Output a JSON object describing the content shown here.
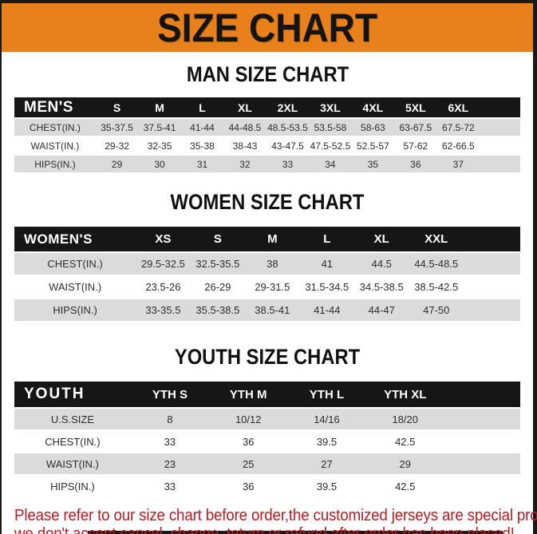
{
  "banner": {
    "title": "SIZE CHART"
  },
  "sections": [
    {
      "title": "MAN SIZE CHART",
      "header": [
        "MEN'S",
        "S",
        "M",
        "L",
        "XL",
        "2XL",
        "3XL",
        "4XL",
        "5XL",
        "6XL"
      ],
      "rows": [
        {
          "label": "CHEST(IN.)",
          "values": [
            "35-37.5",
            "37.5-41",
            "41-44",
            "44-48.5",
            "48.5-53.5",
            "53.5-58",
            "58-63",
            "63-67.5",
            "67.5-72"
          ]
        },
        {
          "label": "WAIST(IN.)",
          "values": [
            "29-32",
            "32-35",
            "35-38",
            "38-43",
            "43-47.5",
            "47.5-52.5",
            "52.5-57",
            "57-62",
            "62-66.5"
          ]
        },
        {
          "label": "HIPS(IN.)",
          "values": [
            "29",
            "30",
            "31",
            "32",
            "33",
            "34",
            "35",
            "36",
            "37"
          ]
        }
      ]
    },
    {
      "title": "WOMEN SIZE CHART",
      "header": [
        "WOMEN'S",
        "XS",
        "S",
        "M",
        "L",
        "XL",
        "XXL"
      ],
      "rows": [
        {
          "label": "CHEST(IN.)",
          "values": [
            "29.5-32.5",
            "32.5-35.5",
            "38",
            "41",
            "44.5",
            "44.5-48.5"
          ]
        },
        {
          "label": "WAIST(IN.)",
          "values": [
            "23.5-26",
            "26-29",
            "29-31.5",
            "31.5-34.5",
            "34.5-38.5",
            "38.5-42.5"
          ]
        },
        {
          "label": "HIPS(IN.)",
          "values": [
            "33-35.5",
            "35.5-38.5",
            "38.5-41",
            "41-44",
            "44-47",
            "47-50"
          ]
        }
      ]
    },
    {
      "title": "YOUTH SIZE CHART",
      "header": [
        "YOUTH",
        "YTH S",
        "YTH M",
        "YTH L",
        "YTH XL"
      ],
      "rows": [
        {
          "label": "U.S.SIZE",
          "values": [
            "8",
            "10/12",
            "14/16",
            "18/20"
          ]
        },
        {
          "label": "CHEST(IN.)",
          "values": [
            "33",
            "36",
            "39.5",
            "42.5"
          ]
        },
        {
          "label": "WAIST(IN.)",
          "values": [
            "23",
            "25",
            "27",
            "29"
          ]
        },
        {
          "label": "HIPS(IN.)",
          "values": [
            "33",
            "36",
            "39.5",
            "42.5"
          ]
        }
      ]
    }
  ],
  "footer": {
    "line1": "Please refer to our size chart before order,the customized jerseys are special products,",
    "line2": "we don't accept cancel, change, teturn or refund after order has been placed!"
  },
  "colors": {
    "banner_bg": "#E8811B",
    "frame_black": "#191919",
    "header_bg": "#161616",
    "row_alt": "#DBDBDB",
    "footer_red": "#B32025"
  }
}
